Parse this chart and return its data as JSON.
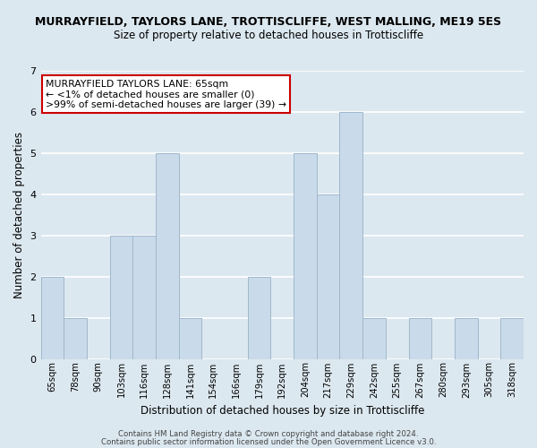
{
  "title_line1": "MURRAYFIELD, TAYLORS LANE, TROTTISCLIFFE, WEST MALLING, ME19 5ES",
  "title_line2": "Size of property relative to detached houses in Trottiscliffe",
  "xlabel": "Distribution of detached houses by size in Trottiscliffe",
  "ylabel": "Number of detached properties",
  "footer_line1": "Contains HM Land Registry data © Crown copyright and database right 2024.",
  "footer_line2": "Contains public sector information licensed under the Open Government Licence v3.0.",
  "bin_labels": [
    "65sqm",
    "78sqm",
    "90sqm",
    "103sqm",
    "116sqm",
    "128sqm",
    "141sqm",
    "154sqm",
    "166sqm",
    "179sqm",
    "192sqm",
    "204sqm",
    "217sqm",
    "229sqm",
    "242sqm",
    "255sqm",
    "267sqm",
    "280sqm",
    "293sqm",
    "305sqm",
    "318sqm"
  ],
  "bar_values": [
    2,
    1,
    0,
    3,
    3,
    5,
    1,
    0,
    0,
    2,
    0,
    5,
    4,
    6,
    1,
    0,
    1,
    0,
    1,
    0,
    1
  ],
  "bar_color": "#c9daea",
  "bar_edge_color": "#a0b8cc",
  "ylim": [
    0,
    7
  ],
  "yticks": [
    0,
    1,
    2,
    3,
    4,
    5,
    6,
    7
  ],
  "annotation_title": "MURRAYFIELD TAYLORS LANE: 65sqm",
  "annotation_line1": "← <1% of detached houses are smaller (0)",
  "annotation_line2": ">99% of semi-detached houses are larger (39) →",
  "annotation_box_facecolor": "#ffffff",
  "annotation_box_edgecolor": "#cc0000",
  "background_color": "#dce8f0",
  "grid_color": "#ffffff",
  "title1_fontsize": 9.0,
  "title2_fontsize": 8.5
}
